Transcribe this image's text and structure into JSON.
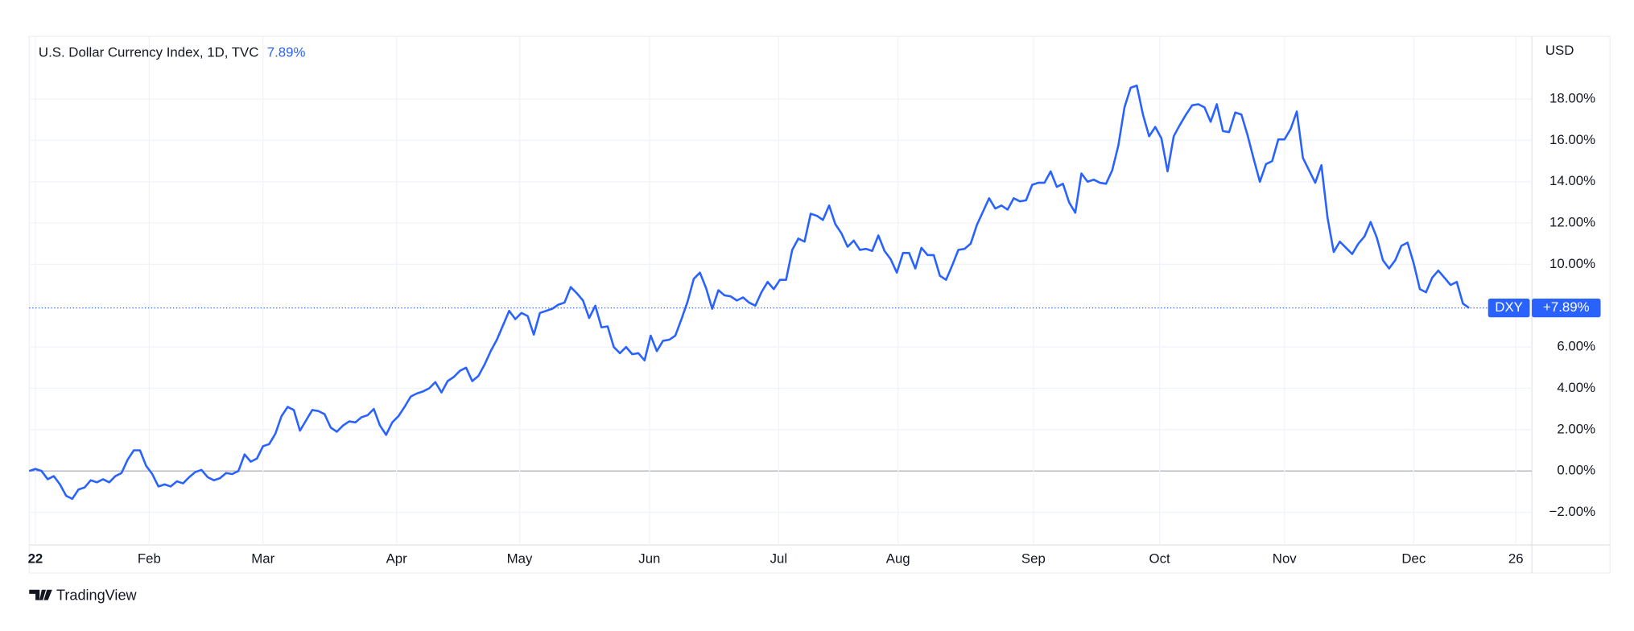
{
  "chart_data": {
    "type": "line",
    "title": "U.S. Dollar Currency Index, 1D, TVC",
    "change_label": "7.89%",
    "currency": "USD",
    "branding": "TradingView",
    "last_value_label": "+7.89%",
    "series": [
      {
        "name": "DXY",
        "color": "#2962ff",
        "values": [
          0.0,
          0.1,
          0.0,
          -0.4,
          -0.25,
          -0.65,
          -1.2,
          -1.35,
          -0.9,
          -0.8,
          -0.45,
          -0.55,
          -0.4,
          -0.55,
          -0.25,
          -0.1,
          0.55,
          1.0,
          1.0,
          0.25,
          -0.15,
          -0.75,
          -0.65,
          -0.75,
          -0.5,
          -0.6,
          -0.3,
          -0.05,
          0.05,
          -0.3,
          -0.45,
          -0.35,
          -0.1,
          -0.15,
          0.0,
          0.8,
          0.45,
          0.6,
          1.2,
          1.3,
          1.8,
          2.65,
          3.1,
          2.95,
          1.95,
          2.45,
          2.95,
          2.9,
          2.75,
          2.1,
          1.9,
          2.2,
          2.4,
          2.35,
          2.6,
          2.7,
          3.0,
          2.2,
          1.75,
          2.35,
          2.65,
          3.1,
          3.6,
          3.75,
          3.85,
          4.0,
          4.3,
          3.8,
          4.35,
          4.55,
          4.85,
          5.0,
          4.35,
          4.6,
          5.15,
          5.8,
          6.35,
          7.05,
          7.75,
          7.35,
          7.65,
          7.5,
          6.6,
          7.65,
          7.75,
          7.85,
          8.05,
          8.15,
          8.9,
          8.6,
          8.25,
          7.4,
          8.0,
          6.95,
          7.0,
          6.0,
          5.7,
          6.0,
          5.65,
          5.7,
          5.35,
          6.55,
          5.8,
          6.3,
          6.35,
          6.55,
          7.35,
          8.2,
          9.3,
          9.6,
          8.85,
          7.85,
          8.75,
          8.5,
          8.45,
          8.25,
          8.4,
          8.15,
          8.0,
          8.65,
          9.15,
          8.8,
          9.25,
          9.25,
          10.7,
          11.25,
          11.1,
          12.45,
          12.35,
          12.15,
          12.85,
          11.95,
          11.5,
          10.85,
          11.15,
          10.7,
          10.75,
          10.65,
          11.4,
          10.65,
          10.25,
          9.6,
          10.55,
          10.55,
          9.8,
          10.8,
          10.45,
          10.45,
          9.45,
          9.25,
          9.95,
          10.7,
          10.75,
          11.0,
          11.9,
          12.55,
          13.2,
          12.7,
          12.85,
          12.65,
          13.2,
          13.05,
          13.1,
          13.85,
          13.95,
          13.95,
          14.5,
          13.75,
          13.9,
          13.0,
          12.5,
          14.4,
          14.0,
          14.1,
          13.95,
          13.9,
          14.55,
          15.75,
          17.6,
          18.55,
          18.65,
          17.25,
          16.2,
          16.65,
          16.1,
          14.5,
          16.2,
          16.75,
          17.25,
          17.7,
          17.75,
          17.6,
          16.9,
          17.75,
          16.45,
          16.4,
          17.35,
          17.25,
          16.25,
          15.1,
          14.0,
          14.85,
          15.0,
          16.05,
          16.05,
          16.55,
          17.4,
          15.15,
          14.55,
          13.95,
          14.8,
          12.25,
          10.6,
          11.1,
          10.8,
          10.5,
          11.0,
          11.35,
          12.05,
          11.3,
          10.2,
          9.8,
          10.2,
          10.9,
          11.05,
          10.05,
          8.8,
          8.65,
          9.35,
          9.7,
          9.35,
          9.0,
          9.15,
          8.1,
          7.89
        ]
      }
    ],
    "xlim": [
      0,
      244.2
    ],
    "xticks": [
      {
        "value": 1,
        "label": "22"
      },
      {
        "value": 19.5,
        "label": "Feb"
      },
      {
        "value": 38,
        "label": "Mar"
      },
      {
        "value": 59.7,
        "label": "Apr"
      },
      {
        "value": 79.7,
        "label": "May"
      },
      {
        "value": 100.8,
        "label": "Jun"
      },
      {
        "value": 121.8,
        "label": "Jul"
      },
      {
        "value": 141.2,
        "label": "Aug"
      },
      {
        "value": 163.2,
        "label": "Sep"
      },
      {
        "value": 183.7,
        "label": "Oct"
      },
      {
        "value": 204,
        "label": "Nov"
      },
      {
        "value": 225,
        "label": "Dec"
      },
      {
        "value": 241.6,
        "label": "26"
      }
    ],
    "ylim": [
      -3.58,
      21.03
    ],
    "yticks": [
      {
        "value": -2,
        "label": "−2.00%"
      },
      {
        "value": 0,
        "label": "0.00%"
      },
      {
        "value": 2,
        "label": "2.00%"
      },
      {
        "value": 4,
        "label": "4.00%"
      },
      {
        "value": 6,
        "label": "6.00%"
      },
      {
        "value": 10,
        "label": "10.00%"
      },
      {
        "value": 12,
        "label": "12.00%"
      },
      {
        "value": 14,
        "label": "14.00%"
      },
      {
        "value": 16,
        "label": "16.00%"
      },
      {
        "value": 18,
        "label": "18.00%"
      }
    ],
    "grid": true
  }
}
